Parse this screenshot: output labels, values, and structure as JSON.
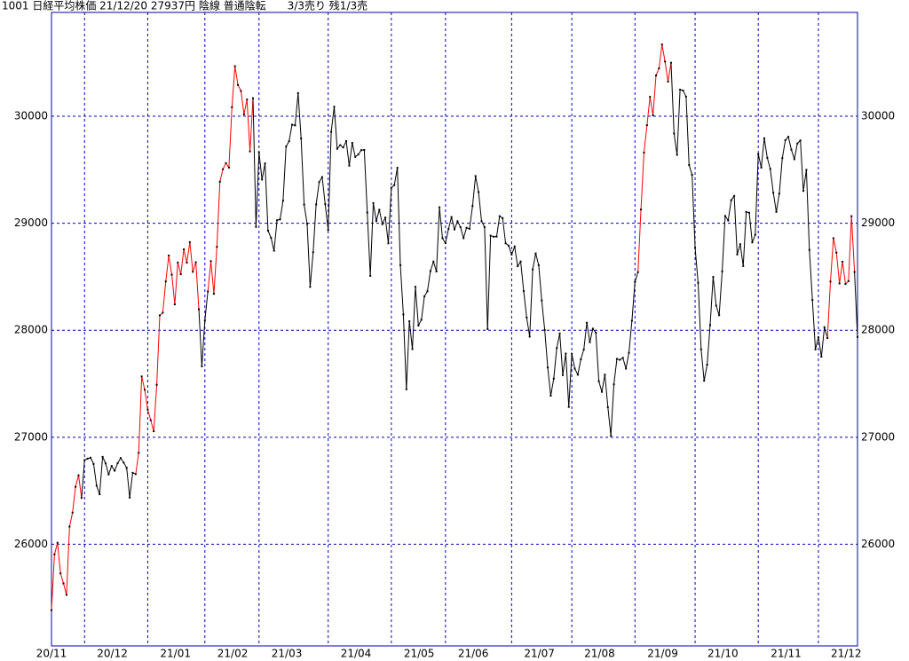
{
  "chart_data": {
    "type": "line",
    "title": "1001 日経平均株価 21/12/20 27937円 陰線 普通陰転　　3/3売り 残1/3売",
    "ylim": [
      25050,
      30970
    ],
    "yticks": [
      26000,
      27000,
      28000,
      29000,
      30000
    ],
    "grid": true,
    "marker_color": "#000000",
    "categories": [
      "20/11",
      null,
      null,
      null,
      null,
      null,
      null,
      null,
      null,
      null,
      null,
      "20/12",
      null,
      null,
      null,
      null,
      null,
      null,
      null,
      null,
      null,
      null,
      null,
      null,
      null,
      null,
      null,
      null,
      null,
      null,
      null,
      null,
      "21/01",
      null,
      null,
      null,
      null,
      null,
      null,
      null,
      null,
      null,
      null,
      null,
      null,
      null,
      null,
      null,
      null,
      null,
      null,
      "21/02",
      null,
      null,
      null,
      null,
      null,
      null,
      null,
      null,
      null,
      null,
      null,
      null,
      null,
      null,
      null,
      null,
      null,
      "21/03",
      null,
      null,
      null,
      null,
      null,
      null,
      null,
      null,
      null,
      null,
      null,
      null,
      null,
      null,
      null,
      null,
      null,
      null,
      null,
      null,
      null,
      null,
      "21/04",
      null,
      null,
      null,
      null,
      null,
      null,
      null,
      null,
      null,
      null,
      null,
      null,
      null,
      null,
      null,
      null,
      null,
      null,
      null,
      null,
      "21/05",
      null,
      null,
      null,
      null,
      null,
      null,
      null,
      null,
      null,
      null,
      null,
      null,
      null,
      null,
      null,
      null,
      null,
      "21/06",
      null,
      null,
      null,
      null,
      null,
      null,
      null,
      null,
      null,
      null,
      null,
      null,
      null,
      null,
      null,
      null,
      null,
      null,
      null,
      null,
      null,
      "21/07",
      null,
      null,
      null,
      null,
      null,
      null,
      null,
      null,
      null,
      null,
      null,
      null,
      null,
      null,
      null,
      null,
      null,
      null,
      null,
      "21/08",
      null,
      null,
      null,
      null,
      null,
      null,
      null,
      null,
      null,
      null,
      null,
      null,
      null,
      null,
      null,
      null,
      null,
      null,
      null,
      null,
      "21/09",
      null,
      null,
      null,
      null,
      null,
      null,
      null,
      null,
      null,
      null,
      null,
      null,
      null,
      null,
      null,
      null,
      null,
      null,
      null,
      "21/10",
      null,
      null,
      null,
      null,
      null,
      null,
      null,
      null,
      null,
      null,
      null,
      null,
      null,
      null,
      null,
      null,
      null,
      null,
      null,
      null,
      "21/11",
      null,
      null,
      null,
      null,
      null,
      null,
      null,
      null,
      null,
      null,
      null,
      null,
      null,
      null,
      null,
      null,
      null,
      null,
      null,
      "21/12",
      null,
      null,
      null,
      null,
      null,
      null,
      null,
      null,
      null,
      null,
      null,
      null,
      null
    ],
    "values": [
      25385,
      25906,
      26014,
      25728,
      25634,
      25527,
      26165,
      26296,
      26537,
      26644,
      26433,
      26787,
      26800,
      26809,
      26751,
      26547,
      26467,
      26817,
      26756,
      26652,
      26732,
      26687,
      26757,
      26806,
      26763,
      26714,
      26436,
      26668,
      26656,
      26854,
      27568,
      27444,
      27258,
      27159,
      27056,
      27490,
      28139,
      28164,
      28456,
      28698,
      28519,
      28242,
      28633,
      28523,
      28756,
      28631,
      28822,
      28546,
      28635,
      28197,
      27663,
      28091,
      28362,
      28646,
      28341,
      28779,
      29388,
      29505,
      29562,
      29520,
      30084,
      30467,
      30292,
      30236,
      30017,
      30156,
      29671,
      30168,
      28966,
      29663,
      29408,
      29559,
      28930,
      28864,
      28743,
      29028,
      29036,
      29211,
      29717,
      29766,
      29921,
      29914,
      30216,
      29792,
      29174,
      28995,
      28405,
      28729,
      29176,
      29384,
      29432,
      29178,
      28938,
      29854,
      30089,
      29696,
      29730,
      29708,
      29768,
      29538,
      29751,
      29620,
      29642,
      29683,
      29685,
      29100,
      28508,
      29188,
      29020,
      29126,
      28991,
      29053,
      28812,
      29331,
      29357,
      29518,
      28608,
      28147,
      27448,
      28084,
      27824,
      28406,
      28044,
      28098,
      28317,
      28364,
      28553,
      28642,
      28549,
      29149,
      28860,
      28814,
      28946,
      29058,
      28942,
      29019,
      28963,
      28860,
      28958,
      28948,
      29161,
      29441,
      29291,
      29018,
      28964,
      28011,
      28884,
      28874,
      28875,
      29066,
      29048,
      28812,
      28791,
      28707,
      28783,
      28598,
      28643,
      28366,
      28118,
      27940,
      28569,
      28718,
      28608,
      28279,
      28003,
      27652,
      27388,
      27548,
      27833,
      27970,
      27581,
      27782,
      27283,
      27781,
      27641,
      27584,
      27728,
      27820,
      28070,
      27888,
      28015,
      27977,
      27523,
      27424,
      27585,
      27281,
      27013,
      27494,
      27732,
      27724,
      27742,
      27641,
      27789,
      28089,
      28451,
      28543,
      29128,
      29659,
      29916,
      30181,
      30008,
      30381,
      30447,
      30670,
      30511,
      30323,
      30500,
      29839,
      29639,
      30248,
      30240,
      30183,
      29544,
      29452,
      28771,
      28444,
      27822,
      27528,
      27678,
      28048,
      28498,
      28230,
      28140,
      28550,
      29068,
      29025,
      29215,
      29255,
      28708,
      28804,
      28600,
      29106,
      29098,
      28820,
      28892,
      29647,
      29520,
      29794,
      29611,
      29507,
      29285,
      29106,
      29277,
      29609,
      29776,
      29808,
      29688,
      29598,
      29745,
      29774,
      29302,
      29499,
      28751,
      28283,
      27821,
      27935,
      27753,
      28029,
      27927,
      28455,
      28860,
      28725,
      28437,
      28640,
      28432,
      28459,
      29066,
      28545,
      27937
    ],
    "segment_colors": [
      "red",
      "red",
      "red",
      "red",
      "red",
      "red",
      "red",
      "red",
      "red",
      "red",
      "red",
      "black",
      "black",
      "black",
      "black",
      "black",
      "black",
      "black",
      "black",
      "black",
      "black",
      "black",
      "black",
      "black",
      "black",
      "black",
      "black",
      "black",
      "black",
      "red",
      "red",
      "red",
      "red",
      "red",
      "red",
      "red",
      "red",
      "red",
      "red",
      "red",
      "red",
      "red",
      "red",
      "red",
      "red",
      "red",
      "red",
      "red",
      "red",
      "red",
      "black",
      "black",
      "black",
      "red",
      "red",
      "red",
      "red",
      "red",
      "red",
      "red",
      "red",
      "red",
      "red",
      "red",
      "red",
      "red",
      "red",
      "red",
      "black",
      "black",
      "black",
      "black",
      "black",
      "black",
      "black",
      "black",
      "black",
      "black",
      "black",
      "black",
      "black",
      "black",
      "black",
      "black",
      "black",
      "black",
      "black",
      "black",
      "black",
      "black",
      "black",
      "black",
      "black",
      "black",
      "black",
      "black",
      "black",
      "black",
      "black",
      "black",
      "black",
      "black",
      "black",
      "black",
      "black",
      "black",
      "black",
      "black",
      "black",
      "black",
      "black",
      "black",
      "black",
      "black",
      "black",
      "black",
      "black",
      "black",
      "black",
      "black",
      "black",
      "black",
      "black",
      "black",
      "black",
      "black",
      "black",
      "black",
      "black",
      "black",
      "black",
      "black",
      "black",
      "black",
      "black",
      "black",
      "black",
      "black",
      "black",
      "black",
      "black",
      "black",
      "black",
      "black",
      "black",
      "black",
      "black",
      "black",
      "black",
      "black",
      "black",
      "black",
      "black",
      "black",
      "black",
      "black",
      "black",
      "black",
      "black",
      "black",
      "black",
      "black",
      "black",
      "black",
      "black",
      "black",
      "black",
      "black",
      "black",
      "black",
      "black",
      "black",
      "black",
      "black",
      "black",
      "black",
      "black",
      "black",
      "black",
      "black",
      "black",
      "black",
      "black",
      "black",
      "black",
      "black",
      "black",
      "black",
      "black",
      "black",
      "black",
      "black",
      "black",
      "black",
      "black",
      "black",
      "red",
      "red",
      "red",
      "red",
      "red",
      "red",
      "red",
      "red",
      "red",
      "red",
      "red",
      "black",
      "black",
      "black",
      "black",
      "black",
      "black",
      "black",
      "black",
      "black",
      "black",
      "black",
      "black",
      "black",
      "black",
      "black",
      "black",
      "black",
      "black",
      "black",
      "black",
      "black",
      "black",
      "black",
      "black",
      "black",
      "black",
      "black",
      "black",
      "black",
      "black",
      "black",
      "black",
      "black",
      "black",
      "black",
      "black",
      "black",
      "black",
      "black",
      "black",
      "black",
      "black",
      "black",
      "black",
      "black",
      "black",
      "black",
      "black",
      "black",
      "black",
      "black",
      "black",
      "red",
      "red",
      "red",
      "red",
      "red",
      "red",
      "red",
      "red",
      "red",
      "black"
    ],
    "grid_color": "#0000c0"
  }
}
